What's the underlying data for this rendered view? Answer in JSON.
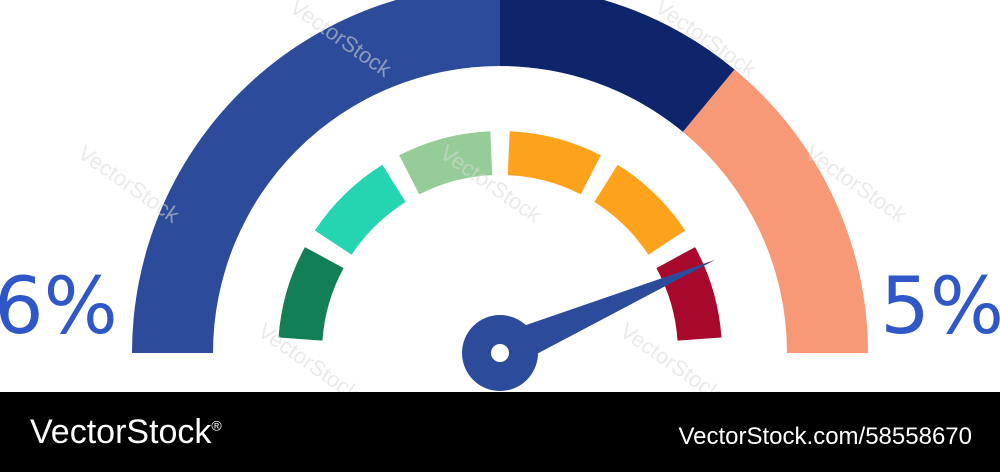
{
  "gauge": {
    "left_percent": "6%",
    "right_percent": "5%",
    "outer_segments": [
      {
        "name": "outer-arc-left",
        "share": 0.5,
        "color": "#2d4b9b"
      },
      {
        "name": "outer-arc-mid",
        "share": 0.22,
        "color": "#0e246b"
      },
      {
        "name": "outer-arc-right",
        "share": 0.28,
        "color": "#f79877"
      }
    ],
    "inner_segments": [
      {
        "name": "inner-seg-dark-green",
        "color": "#137f56"
      },
      {
        "name": "inner-seg-teal",
        "color": "#25d4b1"
      },
      {
        "name": "inner-seg-light-green",
        "color": "#96cc98"
      },
      {
        "name": "inner-seg-orange-1",
        "color": "#ffa21b"
      },
      {
        "name": "inner-seg-orange-2",
        "color": "#ffa21b"
      },
      {
        "name": "inner-seg-red",
        "color": "#a8082c"
      }
    ],
    "needle_level": 0.87,
    "needle_color": "#2d4b9b"
  },
  "watermark": {
    "text": "VectorStock",
    "color": "#d9d9d9"
  },
  "footer": {
    "brand": "VectorStock",
    "brand_mark": "®",
    "image_id": "VectorStock.com/58558670"
  }
}
